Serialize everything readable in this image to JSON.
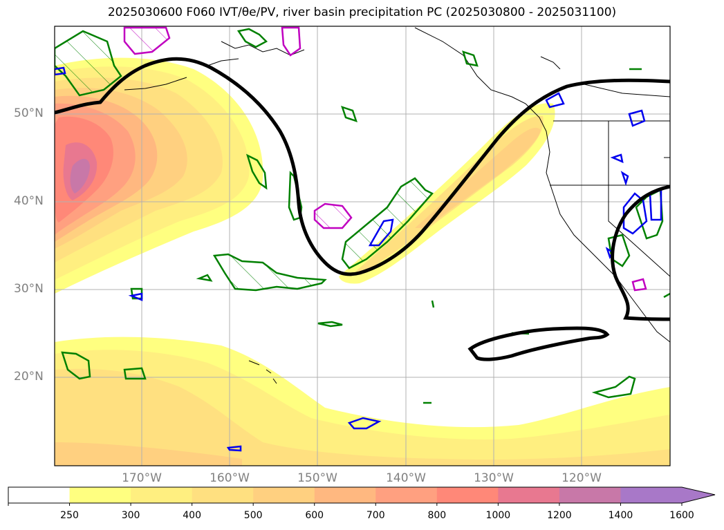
{
  "title": "2025030600 F060 IVT/θe/PV, river basin precipitation PC (2025030800 - 2025031100)",
  "map": {
    "lat_labels": [
      "50°N",
      "40°N",
      "30°N",
      "20°N"
    ],
    "lon_labels": [
      "170°W",
      "160°W",
      "150°W",
      "140°W",
      "130°W",
      "120°W"
    ],
    "gridlines": true
  },
  "colorbar": {
    "levels": [
      "250",
      "300",
      "400",
      "500",
      "600",
      "700",
      "800",
      "1000",
      "1200",
      "1400",
      "1600"
    ],
    "colors": [
      "#ffffff",
      "#ffff80",
      "#ffef80",
      "#ffe080",
      "#ffd080",
      "#ffb880",
      "#ffa080",
      "#ff8878",
      "#e87890",
      "#c878a8",
      "#a878c8"
    ],
    "extend": "max"
  },
  "contour_colors": {
    "black": "#000000",
    "green": "#008000",
    "blue": "#0000ee",
    "magenta": "#c000c0"
  }
}
